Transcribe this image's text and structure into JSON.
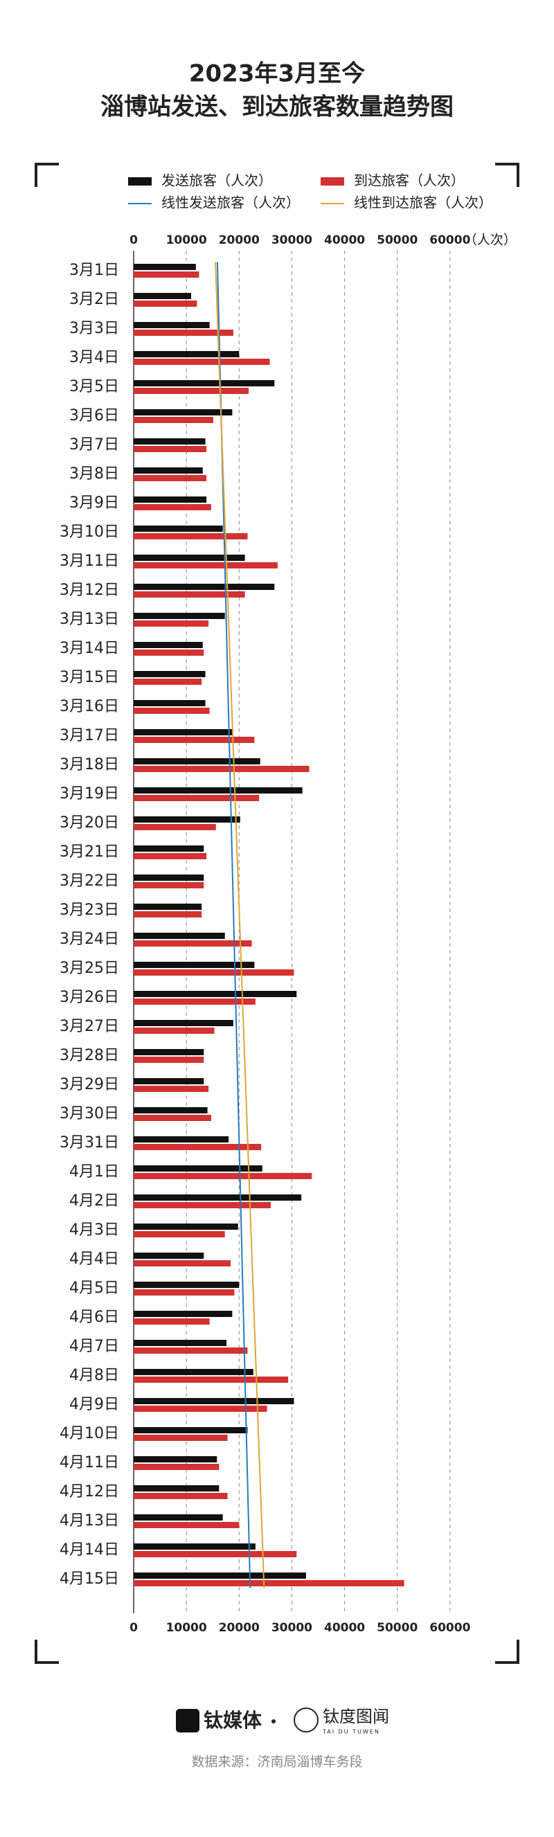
{
  "chart_data": {
    "type": "hbar",
    "title_lines": [
      "2023年3月至今",
      "淄博站发送、到达旅客数量趋势图"
    ],
    "categories": [
      "3月1日",
      "3月2日",
      "3月3日",
      "3月4日",
      "3月5日",
      "3月6日",
      "3月7日",
      "3月8日",
      "3月9日",
      "3月10日",
      "3月11日",
      "3月12日",
      "3月13日",
      "3月14日",
      "3月15日",
      "3月16日",
      "3月17日",
      "3月18日",
      "3月19日",
      "3月20日",
      "3月21日",
      "3月22日",
      "3月23日",
      "3月24日",
      "3月25日",
      "3月26日",
      "3月27日",
      "3月28日",
      "3月29日",
      "3月30日",
      "3月31日",
      "4月1日",
      "4月2日",
      "4月3日",
      "4月4日",
      "4月5日",
      "4月6日",
      "4月7日",
      "4月8日",
      "4月9日",
      "4月10日",
      "4月11日",
      "4月12日",
      "4月13日",
      "4月14日",
      "4月15日"
    ],
    "series": [
      {
        "name": "发送旅客（人次）",
        "color": "#111111",
        "values": [
          11800,
          10900,
          14400,
          20000,
          26700,
          18700,
          13600,
          13100,
          13800,
          16900,
          21100,
          26700,
          17300,
          13100,
          13600,
          13600,
          18900,
          24000,
          32000,
          20200,
          13300,
          13300,
          12900,
          17300,
          22900,
          30900,
          18900,
          13300,
          13300,
          14000,
          18000,
          24400,
          31800,
          19800,
          13300,
          20000,
          18700,
          17600,
          22700,
          30400,
          21600,
          15800,
          16200,
          16900,
          23100,
          32700
        ]
      },
      {
        "name": "到达旅客（人次）",
        "color": "#d23232",
        "values": [
          12400,
          12000,
          18900,
          25800,
          21800,
          15100,
          13800,
          13800,
          14700,
          21600,
          27300,
          21100,
          14200,
          13300,
          12900,
          14400,
          22900,
          33300,
          23800,
          15600,
          13800,
          13300,
          12900,
          22400,
          30400,
          23100,
          15300,
          13300,
          14200,
          14700,
          24200,
          33800,
          26000,
          17300,
          18400,
          19100,
          14400,
          21600,
          29300,
          25300,
          17800,
          16200,
          17800,
          20000,
          30900,
          51300
        ]
      }
    ],
    "trendlines": [
      {
        "name": "线性发送旅客（人次）",
        "color": "#2b7bb9"
      },
      {
        "name": "线性到达旅客（人次）",
        "color": "#e0a53a"
      }
    ],
    "xlim": [
      0,
      70000
    ],
    "xticks": [
      0,
      10000,
      20000,
      30000,
      40000,
      50000,
      60000
    ],
    "xlabel": "（人次）",
    "grid": true
  },
  "footer": {
    "brand": "钛媒体",
    "brand2": "钛度图闻",
    "brand2_sub": "TAI DU TUWEN",
    "source": "数据来源：济南局淄博车务段"
  }
}
